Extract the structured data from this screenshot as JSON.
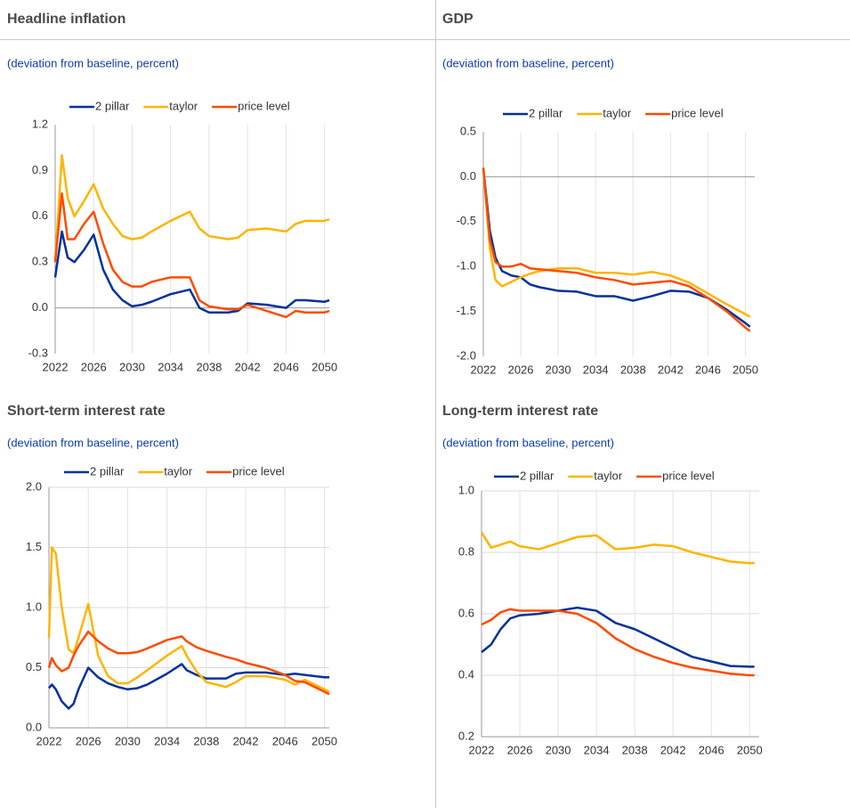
{
  "chart_data": [
    {
      "type": "line",
      "title": "Headline inflation",
      "subtitle": "(deviation from baseline, percent)",
      "x": [
        2022,
        2022.7,
        2023.3,
        2024,
        2025,
        2026,
        2027,
        2028,
        2029,
        2030,
        2031,
        2032,
        2034,
        2036,
        2037,
        2038,
        2040,
        2041,
        2042,
        2044,
        2046,
        2047,
        2048,
        2050,
        2050.5
      ],
      "series": [
        {
          "name": "2 pillar",
          "color": "#003299",
          "values": [
            0.2,
            0.5,
            0.33,
            0.3,
            0.38,
            0.48,
            0.25,
            0.12,
            0.05,
            0.01,
            0.02,
            0.04,
            0.09,
            0.12,
            0.0,
            -0.03,
            -0.03,
            -0.02,
            0.03,
            0.02,
            0.0,
            0.05,
            0.05,
            0.04,
            0.05
          ]
        },
        {
          "name": "taylor",
          "color": "#ffb400",
          "values": [
            0.3,
            1.0,
            0.72,
            0.6,
            0.7,
            0.81,
            0.65,
            0.55,
            0.47,
            0.45,
            0.46,
            0.5,
            0.57,
            0.63,
            0.52,
            0.47,
            0.45,
            0.46,
            0.51,
            0.52,
            0.5,
            0.55,
            0.57,
            0.57,
            0.58
          ]
        },
        {
          "name": "price level",
          "color": "#ff4b00",
          "values": [
            0.3,
            0.75,
            0.45,
            0.45,
            0.55,
            0.63,
            0.42,
            0.25,
            0.17,
            0.14,
            0.14,
            0.17,
            0.2,
            0.2,
            0.05,
            0.01,
            -0.01,
            -0.01,
            0.02,
            -0.02,
            -0.06,
            -0.02,
            -0.03,
            -0.03,
            -0.02
          ]
        }
      ],
      "xlim": [
        2022,
        2050.5
      ],
      "xticks": [
        2022,
        2026,
        2030,
        2034,
        2038,
        2042,
        2046,
        2050
      ],
      "ylim": [
        -0.3,
        1.2
      ],
      "yticks": [
        -0.3,
        {
          "value": 0,
          "label": "0.0"
        },
        0.3,
        0.6,
        0.9,
        1.2
      ],
      "xgrid": true,
      "ygrid": false
    },
    {
      "type": "line",
      "title": "GDP",
      "subtitle": "(deviation from baseline, percent)",
      "x": [
        2022,
        2022.7,
        2023.3,
        2024,
        2025,
        2026,
        2027,
        2028,
        2030,
        2032,
        2034,
        2036,
        2038,
        2040,
        2042,
        2044,
        2046,
        2048,
        2050,
        2050.5
      ],
      "series": [
        {
          "name": "2 pillar",
          "color": "#003299",
          "values": [
            0.1,
            -0.6,
            -0.9,
            -1.05,
            -1.1,
            -1.12,
            -1.2,
            -1.23,
            -1.27,
            -1.28,
            -1.33,
            -1.33,
            -1.38,
            -1.33,
            -1.27,
            -1.28,
            -1.35,
            -1.48,
            -1.63,
            -1.67
          ]
        },
        {
          "name": "taylor",
          "color": "#ffb400",
          "values": [
            0.1,
            -0.8,
            -1.15,
            -1.22,
            -1.17,
            -1.12,
            -1.08,
            -1.05,
            -1.02,
            -1.02,
            -1.07,
            -1.07,
            -1.09,
            -1.06,
            -1.1,
            -1.18,
            -1.3,
            -1.42,
            -1.53,
            -1.56
          ]
        },
        {
          "name": "price level",
          "color": "#ff4b00",
          "values": [
            0.1,
            -0.7,
            -0.95,
            -1.0,
            -1.0,
            -0.97,
            -1.02,
            -1.03,
            -1.05,
            -1.07,
            -1.12,
            -1.15,
            -1.2,
            -1.18,
            -1.16,
            -1.22,
            -1.35,
            -1.5,
            -1.68,
            -1.72
          ]
        }
      ],
      "xlim": [
        2022,
        2051
      ],
      "xticks": [
        2022,
        2026,
        2030,
        2034,
        2038,
        2042,
        2046,
        2050
      ],
      "ylim": [
        -2,
        0.5
      ],
      "yticks": [
        {
          "value": -2,
          "label": "-2.0"
        },
        -1.5,
        {
          "value": -1,
          "label": "-1.0"
        },
        -0.5,
        {
          "value": 0,
          "label": "0.0"
        },
        0.5
      ],
      "xgrid": true,
      "ygrid": false
    },
    {
      "type": "line",
      "title": "Short-term interest rate",
      "subtitle": "(deviation from baseline, percent)",
      "x": [
        2022,
        2022.3,
        2022.7,
        2023.3,
        2024,
        2024.5,
        2025,
        2026,
        2027,
        2028,
        2029,
        2030,
        2031,
        2032,
        2034,
        2035.5,
        2036,
        2037,
        2038,
        2040,
        2041,
        2042,
        2044,
        2046,
        2047,
        2048,
        2050,
        2050.5
      ],
      "series": [
        {
          "name": "2 pillar",
          "color": "#003299",
          "values": [
            0.33,
            0.36,
            0.32,
            0.22,
            0.16,
            0.2,
            0.32,
            0.5,
            0.42,
            0.37,
            0.34,
            0.32,
            0.33,
            0.36,
            0.45,
            0.53,
            0.48,
            0.44,
            0.41,
            0.41,
            0.45,
            0.46,
            0.46,
            0.44,
            0.45,
            0.44,
            0.42,
            0.42
          ]
        },
        {
          "name": "taylor",
          "color": "#ffb400",
          "values": [
            0.75,
            1.5,
            1.45,
            1.0,
            0.65,
            0.62,
            0.75,
            1.03,
            0.6,
            0.43,
            0.37,
            0.37,
            0.42,
            0.48,
            0.6,
            0.68,
            0.6,
            0.47,
            0.38,
            0.34,
            0.38,
            0.43,
            0.43,
            0.4,
            0.36,
            0.4,
            0.32,
            0.3
          ]
        },
        {
          "name": "price level",
          "color": "#ff4b00",
          "values": [
            0.5,
            0.58,
            0.52,
            0.47,
            0.5,
            0.6,
            0.68,
            0.8,
            0.72,
            0.66,
            0.62,
            0.62,
            0.63,
            0.66,
            0.73,
            0.76,
            0.72,
            0.67,
            0.64,
            0.59,
            0.57,
            0.54,
            0.5,
            0.44,
            0.39,
            0.38,
            0.3,
            0.28
          ]
        }
      ],
      "xlim": [
        2022,
        2050.5
      ],
      "xticks": [
        2022,
        2026,
        2030,
        2034,
        2038,
        2042,
        2046,
        2050
      ],
      "ylim": [
        0,
        2
      ],
      "yticks": [
        {
          "value": 0,
          "label": "0.0"
        },
        0.5,
        {
          "value": 1,
          "label": "1.0"
        },
        1.5,
        {
          "value": 2,
          "label": "2.0"
        }
      ],
      "xgrid": true,
      "ygrid": true
    },
    {
      "type": "line",
      "title": "Long-term interest rate",
      "subtitle": "(deviation from baseline, percent)",
      "x": [
        2022,
        2023,
        2024,
        2025,
        2026,
        2028,
        2030,
        2032,
        2034,
        2036,
        2038,
        2040,
        2042,
        2044,
        2046,
        2048,
        2050,
        2050.5
      ],
      "series": [
        {
          "name": "2 pillar",
          "color": "#003299",
          "values": [
            0.475,
            0.5,
            0.55,
            0.585,
            0.595,
            0.6,
            0.61,
            0.62,
            0.61,
            0.57,
            0.55,
            0.52,
            0.49,
            0.46,
            0.445,
            0.43,
            0.428,
            0.428
          ]
        },
        {
          "name": "taylor",
          "color": "#ffb400",
          "values": [
            0.865,
            0.815,
            0.825,
            0.835,
            0.82,
            0.81,
            0.83,
            0.85,
            0.855,
            0.81,
            0.815,
            0.825,
            0.82,
            0.8,
            0.785,
            0.77,
            0.765,
            0.765
          ]
        },
        {
          "name": "price level",
          "color": "#ff4b00",
          "values": [
            0.565,
            0.58,
            0.605,
            0.615,
            0.61,
            0.61,
            0.61,
            0.6,
            0.57,
            0.52,
            0.485,
            0.46,
            0.44,
            0.425,
            0.415,
            0.405,
            0.4,
            0.4
          ]
        }
      ],
      "xlim": [
        2022,
        2051
      ],
      "xticks": [
        2022,
        2026,
        2030,
        2034,
        2038,
        2042,
        2046,
        2050
      ],
      "ylim": [
        0.2,
        1
      ],
      "yticks": [
        0.2,
        0.4,
        0.6,
        0.8,
        {
          "value": 1,
          "label": "1.0"
        }
      ],
      "xgrid": true,
      "ygrid": true
    }
  ]
}
